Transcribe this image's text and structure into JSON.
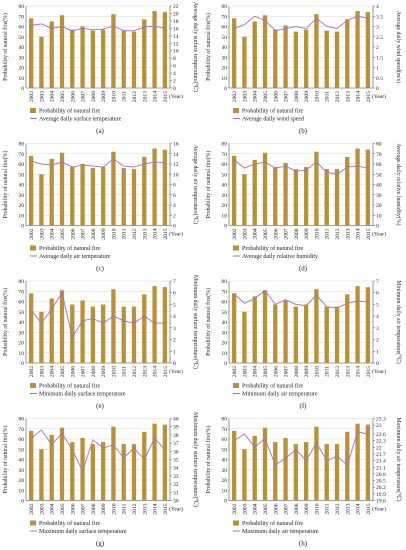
{
  "years": [
    "2002",
    "2003",
    "2004",
    "2005",
    "2006",
    "2007",
    "2008",
    "2009",
    "2010",
    "2011",
    "2012",
    "2013",
    "2014",
    "2015"
  ],
  "x_unit": "(Year)",
  "left_axis_label": "Probability of natural fire(%)",
  "bar_series_name": "Probability of natural fire",
  "bar_color": "#b8913a",
  "line_color": "#a070c0",
  "chart_data": [
    {
      "type": "bar",
      "panel": "(a)",
      "categories": [
        "2002",
        "2003",
        "2004",
        "2005",
        "2006",
        "2007",
        "2008",
        "2009",
        "2010",
        "2011",
        "2012",
        "2013",
        "2014",
        "2015"
      ],
      "series": [
        {
          "name": "Probability of natural fire",
          "axis": "left",
          "kind": "bar",
          "values": [
            68,
            50,
            65,
            71,
            57,
            60,
            56,
            57,
            72,
            56,
            55,
            67,
            75,
            74
          ]
        },
        {
          "name": "Average daily surface temperature",
          "axis": "right",
          "kind": "line",
          "values": [
            16.8,
            17.2,
            16.0,
            16.5,
            15.3,
            16.0,
            15.6,
            15.8,
            16.6,
            15.4,
            15.3,
            16.4,
            16.6,
            16.0
          ]
        }
      ],
      "ylim_left": [
        0,
        80
      ],
      "yticks_left": [
        0,
        10,
        20,
        30,
        40,
        50,
        60,
        70,
        80
      ],
      "ylim_right": [
        0,
        22
      ],
      "yticks_right": [
        0,
        2,
        4,
        6,
        8,
        10,
        12,
        14,
        16,
        18,
        20,
        22
      ],
      "ylabel_right": "Average daily surface temperature(℃)"
    },
    {
      "type": "bar",
      "panel": "(b)",
      "categories": [
        "2002",
        "2003",
        "2004",
        "2005",
        "2006",
        "2007",
        "2008",
        "2009",
        "2010",
        "2011",
        "2012",
        "2013",
        "2014",
        "2015"
      ],
      "series": [
        {
          "name": "Probability of natural fire",
          "axis": "left",
          "kind": "bar",
          "values": [
            68,
            50,
            65,
            71,
            57,
            61,
            55,
            57,
            72,
            56,
            55,
            67,
            75,
            74
          ]
        },
        {
          "name": "Average daily wind speed",
          "axis": "right",
          "kind": "line",
          "values": [
            2.9,
            3.1,
            3.5,
            3.3,
            2.8,
            2.9,
            3.0,
            2.9,
            3.4,
            3.0,
            2.9,
            3.3,
            3.5,
            3.4
          ]
        }
      ],
      "ylim_left": [
        0,
        80
      ],
      "yticks_left": [
        0,
        10,
        20,
        30,
        40,
        50,
        60,
        70,
        80
      ],
      "ylim_right": [
        0,
        4
      ],
      "yticks_right": [
        0,
        0.5,
        1,
        1.5,
        2,
        2.5,
        3,
        3.5,
        4
      ],
      "ylabel_right": "Average daily wind speed(m/s)"
    },
    {
      "type": "bar",
      "panel": "(c)",
      "categories": [
        "2002",
        "2003",
        "2004",
        "2005",
        "2006",
        "2007",
        "2008",
        "2009",
        "2010",
        "2011",
        "2012",
        "2013",
        "2014",
        "2015"
      ],
      "series": [
        {
          "name": "Probability of natural fire",
          "axis": "left",
          "kind": "bar",
          "values": [
            68,
            50,
            65,
            71,
            57,
            60,
            56,
            57,
            72,
            56,
            55,
            67,
            75,
            74
          ]
        },
        {
          "name": "Average daily air temperature",
          "axis": "right",
          "kind": "line",
          "values": [
            12.6,
            12.0,
            11.8,
            12.4,
            11.4,
            11.8,
            11.6,
            11.4,
            13.0,
            11.6,
            11.4,
            12.0,
            12.4,
            12.2
          ]
        }
      ],
      "ylim_left": [
        0,
        80
      ],
      "yticks_left": [
        0,
        10,
        20,
        30,
        40,
        50,
        60,
        70,
        80
      ],
      "ylim_right": [
        0,
        16
      ],
      "yticks_right": [
        0,
        2,
        4,
        6,
        8,
        10,
        12,
        14,
        16
      ],
      "ylabel_right": "Average daily air temperature(℃)"
    },
    {
      "type": "bar",
      "panel": "(d)",
      "categories": [
        "2002",
        "2003",
        "2004",
        "2005",
        "2006",
        "2007",
        "2008",
        "2009",
        "2010",
        "2011",
        "2012",
        "2013",
        "2014",
        "2015"
      ],
      "series": [
        {
          "name": "Probability of natural fire",
          "axis": "left",
          "kind": "bar",
          "values": [
            68,
            50,
            64,
            71,
            57,
            61,
            55,
            57,
            72,
            55,
            55,
            67,
            75,
            74
          ]
        },
        {
          "name": "Average daily relative humidity",
          "axis": "right",
          "kind": "line",
          "values": [
            64,
            56,
            60,
            62,
            56,
            58,
            53,
            54,
            62,
            52,
            50,
            57,
            58,
            56
          ]
        }
      ],
      "ylim_left": [
        0,
        80
      ],
      "yticks_left": [
        0,
        10,
        20,
        30,
        40,
        50,
        60,
        70,
        80
      ],
      "ylim_right": [
        0,
        80
      ],
      "yticks_right": [
        0,
        10,
        20,
        30,
        40,
        50,
        60,
        70,
        80
      ],
      "ylabel_right": "Average daily relative humidity(%)"
    },
    {
      "type": "bar",
      "panel": "(e)",
      "categories": [
        "2002",
        "2003",
        "2004",
        "2005",
        "2006",
        "2007",
        "2008",
        "2009",
        "2010",
        "2011",
        "2012",
        "2013",
        "2014",
        "2015"
      ],
      "series": [
        {
          "name": "Probability of natural fire",
          "axis": "left",
          "kind": "bar",
          "values": [
            68,
            50,
            63,
            71,
            57,
            61,
            55,
            57,
            72,
            55,
            55,
            67,
            75,
            74
          ]
        },
        {
          "name": "Minimum daily surface temperature",
          "axis": "right",
          "kind": "line",
          "values": [
            4.5,
            3.4,
            4.6,
            6.0,
            2.2,
            3.6,
            3.8,
            3.4,
            4.0,
            3.6,
            3.4,
            4.0,
            3.4,
            3.4
          ]
        }
      ],
      "ylim_left": [
        0,
        80
      ],
      "yticks_left": [
        0,
        10,
        20,
        30,
        40,
        50,
        60,
        70,
        80
      ],
      "ylim_right": [
        0,
        7
      ],
      "yticks_right": [
        0,
        1,
        2,
        3,
        4,
        5,
        6,
        7
      ],
      "ylabel_right": "Minimum daily surface temperature(℃)"
    },
    {
      "type": "bar",
      "panel": "(f)",
      "categories": [
        "2002",
        "2003",
        "2004",
        "2005",
        "2006",
        "2007",
        "2008",
        "2009",
        "2010",
        "2011",
        "2012",
        "2013",
        "2014",
        "2015"
      ],
      "series": [
        {
          "name": "Probability of natural fire",
          "axis": "left",
          "kind": "bar",
          "values": [
            68,
            50,
            65,
            71,
            57,
            61,
            55,
            57,
            72,
            55,
            55,
            67,
            75,
            74
          ]
        },
        {
          "name": "Minimum daily air temperature",
          "axis": "right",
          "kind": "line",
          "values": [
            5.9,
            5.1,
            5.5,
            6.2,
            5.0,
            5.4,
            5.0,
            4.9,
            5.8,
            4.8,
            4.7,
            5.1,
            5.3,
            5.2
          ]
        }
      ],
      "ylim_left": [
        0,
        80
      ],
      "yticks_left": [
        0,
        10,
        20,
        30,
        40,
        50,
        60,
        70,
        80
      ],
      "ylim_right": [
        0,
        7
      ],
      "yticks_right": [
        0,
        1,
        2,
        3,
        4,
        5,
        6,
        7
      ],
      "ylabel_right": "Minimum daily air temperature(℃)"
    },
    {
      "type": "bar",
      "panel": "(g)",
      "categories": [
        "2002",
        "2003",
        "2004",
        "2005",
        "2006",
        "2007",
        "2008",
        "2009",
        "2010",
        "2011",
        "2012",
        "2013",
        "2014",
        "2015"
      ],
      "series": [
        {
          "name": "Probability of natural fire",
          "axis": "left",
          "kind": "bar",
          "values": [
            68,
            50,
            64,
            71,
            57,
            61,
            55,
            57,
            72,
            55,
            55,
            67,
            75,
            74
          ]
        },
        {
          "name": "Maximum daily surface temperature",
          "axis": "right",
          "kind": "line",
          "values": [
            37.6,
            38.6,
            36.8,
            38.2,
            36.2,
            33.6,
            37.4,
            36.4,
            36.8,
            35.2,
            36.4,
            35.0,
            37.6,
            36.2
          ]
        }
      ],
      "ylim_left": [
        0,
        80
      ],
      "yticks_left": [
        0,
        10,
        20,
        30,
        40,
        50,
        60,
        70,
        80
      ],
      "ylim_right": [
        30,
        40
      ],
      "yticks_right": [
        30,
        31,
        32,
        33,
        34,
        35,
        36,
        37,
        38,
        39,
        40
      ],
      "ylabel_right": "Maximum daily surface temperature(℃)"
    },
    {
      "type": "bar",
      "panel": "(h)",
      "categories": [
        "2002",
        "2003",
        "2004",
        "2005",
        "2006",
        "2007",
        "2008",
        "2009",
        "2010",
        "2011",
        "2012",
        "2013",
        "2014",
        "2015"
      ],
      "series": [
        {
          "name": "Probability of natural fire",
          "axis": "left",
          "kind": "bar",
          "values": [
            68,
            50,
            63,
            71,
            57,
            61,
            55,
            57,
            72,
            55,
            55,
            67,
            75,
            74
          ]
        },
        {
          "name": "Maximum daily air temperature",
          "axis": "right",
          "kind": "line",
          "values": [
            22.3,
            22.6,
            22.0,
            22.4,
            21.2,
            21.5,
            21.9,
            21.4,
            22.2,
            21.4,
            21.6,
            21.2,
            22.7,
            22.6
          ]
        }
      ],
      "ylim_left": [
        0,
        80
      ],
      "yticks_left": [
        0,
        10,
        20,
        30,
        40,
        50,
        60,
        70,
        80
      ],
      "ylim_right": [
        19.6,
        23.3
      ],
      "yticks_right": [
        19.6,
        19.9,
        20.2,
        20.5,
        20.8,
        21.1,
        21.4,
        21.7,
        22.0,
        22.3,
        22.6,
        23.0,
        23.3
      ],
      "ylabel_right": "Maximum daily air temperature(℃)"
    }
  ]
}
